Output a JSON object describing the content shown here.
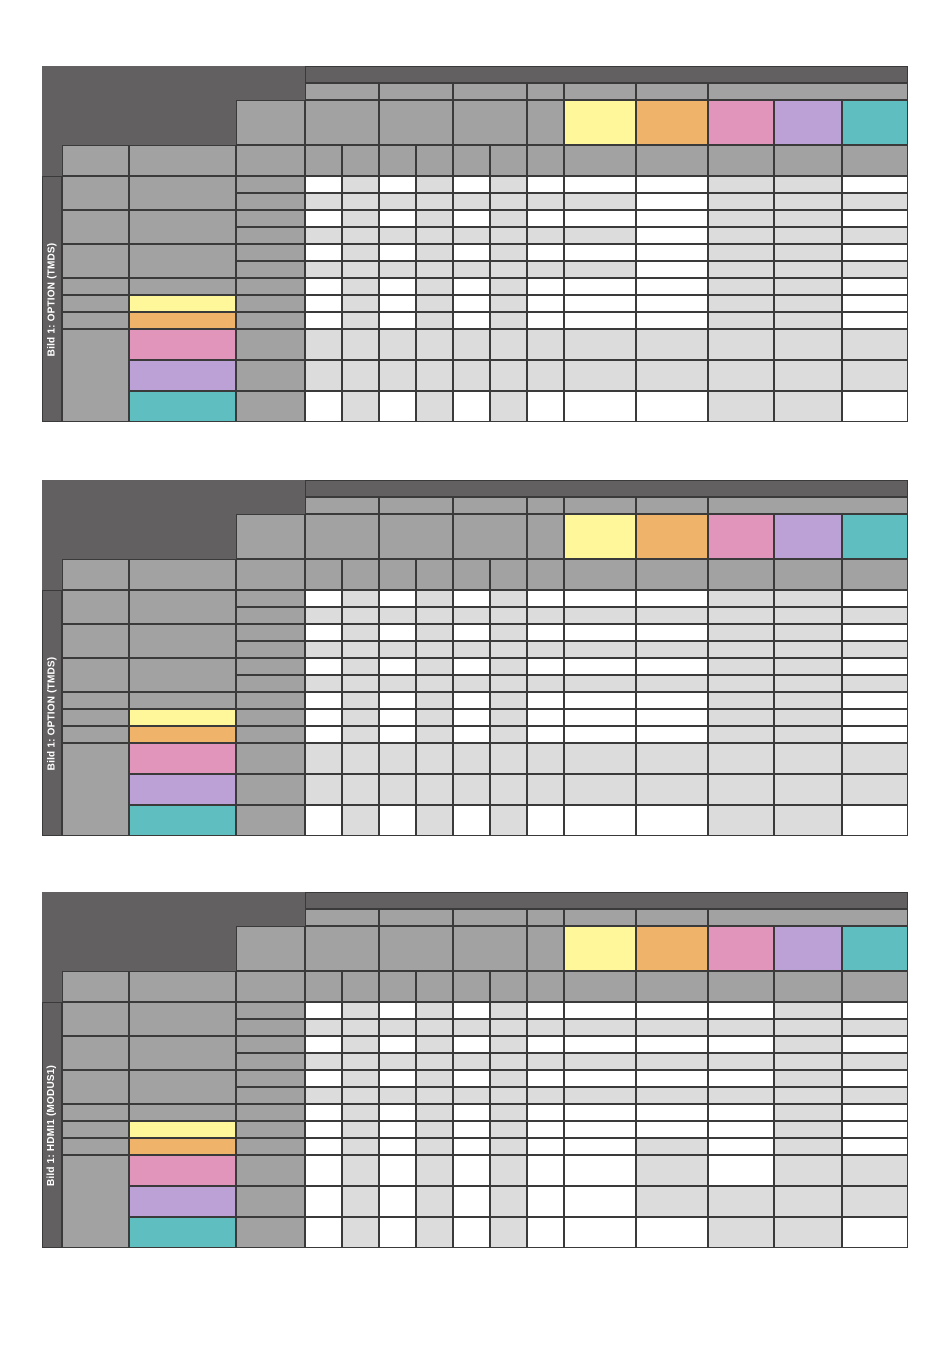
{
  "colors": {
    "dark": "#626061",
    "mid": "#a3a2a3",
    "light": "#dcdcdc",
    "white": "#ffffff",
    "yellow": "#fff799",
    "orange": "#f0b36a",
    "pink": "#e195bb",
    "purple": "#bba1d6",
    "teal": "#5fbfc0"
  },
  "tables": [
    {
      "side_label": "Bild 1: OPTION (TMDS)",
      "rows": [
        [
          "w",
          "l",
          "w",
          "l",
          "w",
          "l",
          "w",
          "w",
          "w",
          "l",
          "l",
          "w"
        ],
        [
          "l",
          "l",
          "l",
          "l",
          "l",
          "l",
          "l",
          "l",
          "w",
          "l",
          "l",
          "l"
        ],
        [
          "w",
          "l",
          "w",
          "l",
          "w",
          "l",
          "w",
          "w",
          "w",
          "l",
          "l",
          "w"
        ],
        [
          "l",
          "l",
          "l",
          "l",
          "l",
          "l",
          "l",
          "l",
          "w",
          "l",
          "l",
          "l"
        ],
        [
          "w",
          "l",
          "w",
          "l",
          "w",
          "l",
          "w",
          "w",
          "w",
          "l",
          "l",
          "w"
        ],
        [
          "l",
          "l",
          "l",
          "l",
          "l",
          "l",
          "l",
          "l",
          "w",
          "l",
          "l",
          "l"
        ],
        [
          "w",
          "l",
          "w",
          "l",
          "w",
          "l",
          "w",
          "w",
          "w",
          "l",
          "l",
          "w"
        ],
        [
          "w",
          "l",
          "w",
          "l",
          "w",
          "l",
          "w",
          "w",
          "w",
          "l",
          "l",
          "w"
        ],
        [
          "w",
          "l",
          "w",
          "l",
          "w",
          "l",
          "w",
          "w",
          "w",
          "l",
          "l",
          "w"
        ],
        [
          "l",
          "l",
          "l",
          "l",
          "l",
          "l",
          "l",
          "l",
          "l",
          "l",
          "l",
          "l"
        ],
        [
          "l",
          "l",
          "l",
          "l",
          "l",
          "l",
          "l",
          "l",
          "l",
          "l",
          "l",
          "l"
        ],
        [
          "w",
          "l",
          "w",
          "l",
          "w",
          "l",
          "w",
          "w",
          "w",
          "l",
          "l",
          "w"
        ]
      ]
    },
    {
      "side_label": "Bild 1: OPTION (TMDS)",
      "rows": [
        [
          "w",
          "l",
          "w",
          "l",
          "w",
          "l",
          "w",
          "w",
          "w",
          "l",
          "l",
          "w"
        ],
        [
          "l",
          "l",
          "l",
          "l",
          "l",
          "l",
          "l",
          "l",
          "l",
          "l",
          "l",
          "l"
        ],
        [
          "w",
          "l",
          "w",
          "l",
          "w",
          "l",
          "w",
          "w",
          "w",
          "l",
          "l",
          "w"
        ],
        [
          "l",
          "l",
          "l",
          "l",
          "l",
          "l",
          "l",
          "l",
          "l",
          "l",
          "l",
          "l"
        ],
        [
          "w",
          "l",
          "w",
          "l",
          "w",
          "l",
          "w",
          "w",
          "w",
          "l",
          "l",
          "w"
        ],
        [
          "l",
          "l",
          "l",
          "l",
          "l",
          "l",
          "l",
          "l",
          "l",
          "l",
          "l",
          "l"
        ],
        [
          "w",
          "l",
          "w",
          "l",
          "w",
          "l",
          "w",
          "w",
          "w",
          "l",
          "l",
          "w"
        ],
        [
          "w",
          "l",
          "w",
          "l",
          "w",
          "l",
          "w",
          "w",
          "w",
          "l",
          "l",
          "w"
        ],
        [
          "w",
          "l",
          "w",
          "l",
          "w",
          "l",
          "w",
          "w",
          "w",
          "l",
          "l",
          "w"
        ],
        [
          "l",
          "l",
          "l",
          "l",
          "l",
          "l",
          "l",
          "l",
          "l",
          "l",
          "l",
          "l"
        ],
        [
          "l",
          "l",
          "l",
          "l",
          "l",
          "l",
          "l",
          "l",
          "l",
          "l",
          "l",
          "l"
        ],
        [
          "w",
          "l",
          "w",
          "l",
          "w",
          "l",
          "w",
          "w",
          "w",
          "l",
          "l",
          "w"
        ]
      ]
    },
    {
      "side_label": "Bild 1: HDMI1 (MODUS1)",
      "rows": [
        [
          "w",
          "l",
          "w",
          "l",
          "w",
          "l",
          "w",
          "w",
          "w",
          "w",
          "l",
          "w"
        ],
        [
          "l",
          "l",
          "l",
          "l",
          "l",
          "l",
          "l",
          "l",
          "l",
          "l",
          "l",
          "l"
        ],
        [
          "w",
          "l",
          "w",
          "l",
          "w",
          "l",
          "w",
          "w",
          "w",
          "w",
          "l",
          "w"
        ],
        [
          "l",
          "l",
          "l",
          "l",
          "l",
          "l",
          "l",
          "l",
          "l",
          "l",
          "l",
          "l"
        ],
        [
          "w",
          "l",
          "w",
          "l",
          "w",
          "l",
          "w",
          "w",
          "w",
          "w",
          "l",
          "w"
        ],
        [
          "l",
          "l",
          "l",
          "l",
          "l",
          "l",
          "l",
          "l",
          "l",
          "l",
          "l",
          "l"
        ],
        [
          "w",
          "l",
          "w",
          "l",
          "w",
          "l",
          "w",
          "w",
          "w",
          "w",
          "l",
          "w"
        ],
        [
          "w",
          "l",
          "w",
          "l",
          "w",
          "l",
          "w",
          "w",
          "w",
          "w",
          "l",
          "w"
        ],
        [
          "w",
          "l",
          "w",
          "l",
          "w",
          "l",
          "w",
          "w",
          "l",
          "w",
          "l",
          "w"
        ],
        [
          "w",
          "l",
          "w",
          "l",
          "w",
          "l",
          "w",
          "w",
          "l",
          "w",
          "l",
          "l"
        ],
        [
          "w",
          "l",
          "w",
          "l",
          "w",
          "l",
          "w",
          "w",
          "l",
          "l",
          "l",
          "l"
        ],
        [
          "w",
          "l",
          "w",
          "l",
          "w",
          "l",
          "w",
          "w",
          "w",
          "l",
          "l",
          "w"
        ]
      ]
    }
  ]
}
